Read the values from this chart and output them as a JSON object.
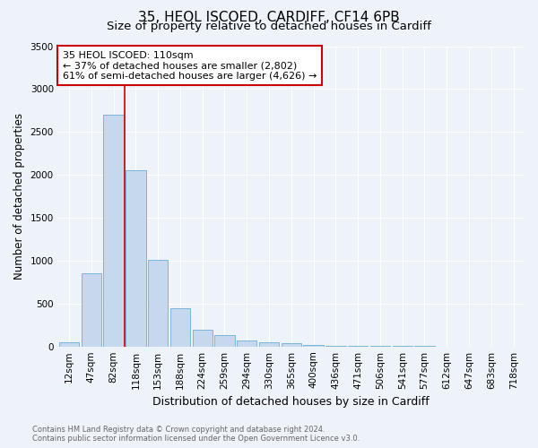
{
  "title1": "35, HEOL ISCOED, CARDIFF, CF14 6PB",
  "title2": "Size of property relative to detached houses in Cardiff",
  "xlabel": "Distribution of detached houses by size in Cardiff",
  "ylabel": "Number of detached properties",
  "categories": [
    "12sqm",
    "47sqm",
    "82sqm",
    "118sqm",
    "153sqm",
    "188sqm",
    "224sqm",
    "259sqm",
    "294sqm",
    "330sqm",
    "365sqm",
    "400sqm",
    "436sqm",
    "471sqm",
    "506sqm",
    "541sqm",
    "577sqm",
    "612sqm",
    "647sqm",
    "683sqm",
    "718sqm"
  ],
  "values": [
    52,
    850,
    2700,
    2050,
    1010,
    450,
    200,
    135,
    70,
    45,
    35,
    20,
    10,
    5,
    3,
    2,
    2,
    1,
    1,
    1,
    1
  ],
  "bar_color": "#c5d8ee",
  "bar_edge_color": "#6aaed6",
  "vline_color": "#cc0000",
  "annotation_title": "35 HEOL ISCOED: 110sqm",
  "annotation_line1": "← 37% of detached houses are smaller (2,802)",
  "annotation_line2": "61% of semi-detached houses are larger (4,626) →",
  "annotation_box_edge_color": "#cc0000",
  "ylim": [
    0,
    3500
  ],
  "yticks": [
    0,
    500,
    1000,
    1500,
    2000,
    2500,
    3000,
    3500
  ],
  "footnote1": "Contains HM Land Registry data © Crown copyright and database right 2024.",
  "footnote2": "Contains public sector information licensed under the Open Government Licence v3.0.",
  "bg_color": "#eef2f9",
  "plot_bg_color": "#eef2f9",
  "grid_color": "#ffffff",
  "title_fontsize": 11,
  "subtitle_fontsize": 9.5,
  "tick_fontsize": 7.5,
  "ylabel_fontsize": 8.5,
  "xlabel_fontsize": 9,
  "annot_fontsize": 8,
  "footnote_fontsize": 6
}
